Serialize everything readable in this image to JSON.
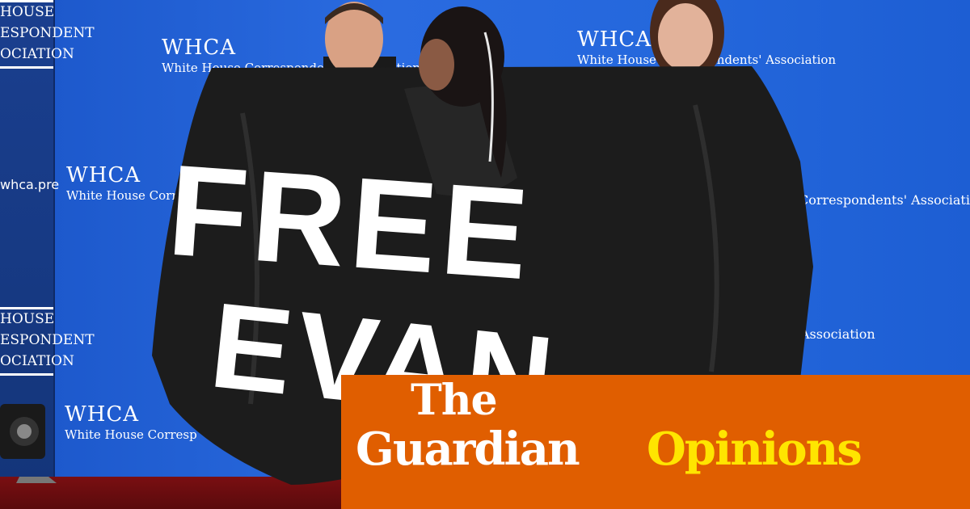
{
  "backdrop": {
    "logos": [
      {
        "title": "WHCA",
        "subtitle": "White House Correspondents' Association"
      },
      {
        "title": "WHCA",
        "subtitle": "White House Corr"
      },
      {
        "title": "WHCA",
        "subtitle": "White House Corresp"
      },
      {
        "title": "WHCA",
        "subtitle": "White House Correspondents' Association"
      }
    ],
    "partials": [
      "Correspondents' Association",
      "Association",
      "wordmark_fragment"
    ],
    "left_panel": {
      "top_lines": [
        "HOUSE",
        "ESPONDENT",
        "OCIATION"
      ],
      "url": "whca.pre",
      "bottom_lines": [
        "HOUSE",
        "ESPONDENT",
        "OCIATION"
      ]
    }
  },
  "banner": {
    "line1": "FREE",
    "line2": "EVAN"
  },
  "logo": {
    "the": "The",
    "guardian": "Guardian",
    "section": "Opinions"
  },
  "colors": {
    "backdrop": "#2467dc",
    "banner": "#1c1c1c",
    "overlay": "#e05e00",
    "section": "#ffe500",
    "carpet": "#7a0f12"
  }
}
